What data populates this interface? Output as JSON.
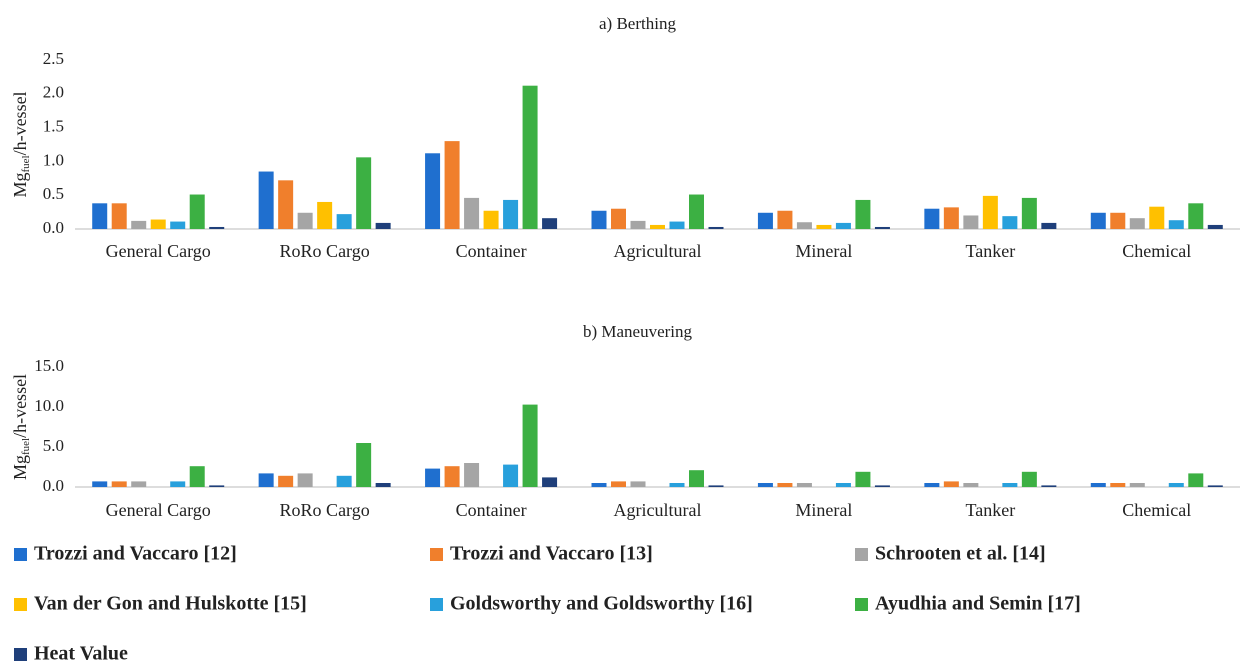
{
  "chart_data": [
    {
      "type": "bar",
      "title": "a) Berthing",
      "ylabel": [
        "Mg",
        "fuel",
        "/h-vessel"
      ],
      "categories": [
        "General Cargo",
        "RoRo Cargo",
        "Container",
        "Agricultural",
        "Mineral",
        "Tanker",
        "Chemical"
      ],
      "ylim": [
        0,
        2.5
      ],
      "yticks": [
        {
          "value": 0,
          "label": "0.0"
        },
        0.5,
        {
          "value": 1,
          "label": "1.0"
        },
        1.5,
        {
          "value": 2,
          "label": "2.0"
        },
        2.5
      ],
      "series": [
        {
          "name": "Trozzi and Vaccaro [12]",
          "color": "#1f6fcf",
          "values": [
            0.38,
            0.85,
            1.12,
            0.27,
            0.24,
            0.3,
            0.24
          ]
        },
        {
          "name": "Trozzi and Vaccaro [13]",
          "color": "#f07f2c",
          "values": [
            0.38,
            0.72,
            1.3,
            0.3,
            0.27,
            0.32,
            0.24
          ]
        },
        {
          "name": "Schrooten et al. [14]",
          "color": "#a5a5a5",
          "values": [
            0.12,
            0.24,
            0.46,
            0.12,
            0.1,
            0.2,
            0.16
          ]
        },
        {
          "name": "Van der Gon and Hulskotte [15]",
          "color": "#ffc000",
          "values": [
            0.14,
            0.4,
            0.27,
            0.06,
            0.06,
            0.49,
            0.33
          ]
        },
        {
          "name": "Goldsworthy and Goldsworthy [16]",
          "color": "#28a0dc",
          "values": [
            0.11,
            0.22,
            0.43,
            0.11,
            0.09,
            0.19,
            0.13
          ]
        },
        {
          "name": "Ayudhia and Semin [17]",
          "color": "#3cb043",
          "values": [
            0.51,
            1.06,
            2.12,
            0.51,
            0.43,
            0.46,
            0.38
          ]
        },
        {
          "name": "Heat Value",
          "color": "#1f3f7a",
          "values": [
            0.03,
            0.09,
            0.16,
            0.03,
            0.03,
            0.09,
            0.06
          ]
        }
      ]
    },
    {
      "type": "bar",
      "title": "b) Maneuvering",
      "ylabel": [
        "Mg",
        "fuel",
        "/h-vessel"
      ],
      "categories": [
        "General Cargo",
        "RoRo Cargo",
        "Container",
        "Agricultural",
        "Mineral",
        "Tanker",
        "Chemical"
      ],
      "ylim": [
        0,
        15
      ],
      "yticks": [
        {
          "value": 0,
          "label": "0.0"
        },
        {
          "value": 5,
          "label": "5.0"
        },
        {
          "value": 10,
          "label": "10.0"
        },
        {
          "value": 15,
          "label": "15.0"
        }
      ],
      "series": [
        {
          "values": [
            0.7,
            1.7,
            2.3,
            0.5,
            0.5,
            0.5,
            0.5
          ]
        },
        {
          "values": [
            0.7,
            1.4,
            2.6,
            0.7,
            0.5,
            0.7,
            0.5
          ]
        },
        {
          "values": [
            0.7,
            1.7,
            3.0,
            0.7,
            0.5,
            0.5,
            0.5
          ]
        },
        {
          "values": [
            null,
            null,
            null,
            null,
            null,
            null,
            null
          ]
        },
        {
          "values": [
            0.7,
            1.4,
            2.8,
            0.5,
            0.5,
            0.5,
            0.5
          ]
        },
        {
          "values": [
            2.6,
            5.5,
            10.3,
            2.1,
            1.9,
            1.9,
            1.7
          ]
        },
        {
          "values": [
            0.2,
            0.5,
            1.2,
            0.2,
            0.2,
            0.2,
            0.2
          ]
        }
      ]
    }
  ]
}
